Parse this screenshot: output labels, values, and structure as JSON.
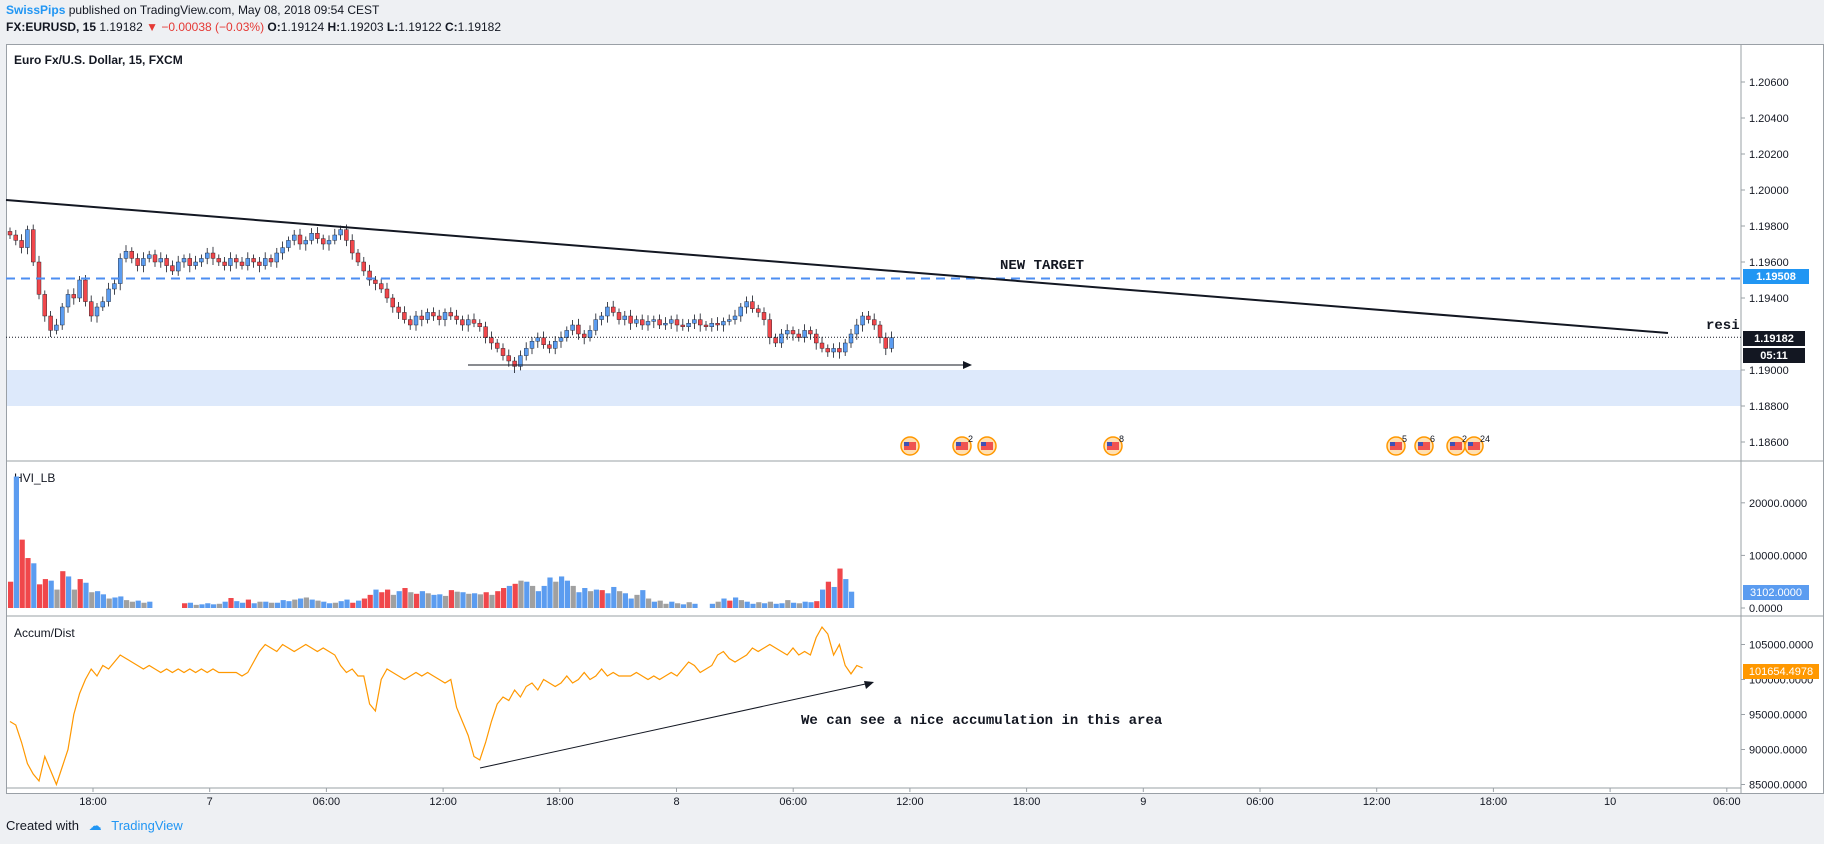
{
  "header": {
    "author": "SwissPips",
    "published": "published on TradingView.com, May 08, 2018 09:54 CEST",
    "symbol": "FX:EURUSD, 15",
    "last": "1.19182",
    "change": "▼ −0.00038 (−0.03%)",
    "o_label": "O:",
    "o": "1.19124",
    "h_label": "H:",
    "h": "1.19203",
    "l_label": "L:",
    "l": "1.19122",
    "c_label": "C:",
    "c": "1.19182"
  },
  "footer": {
    "created": "Created with",
    "brand": "TradingView"
  },
  "colors": {
    "up": "#5b9cf0",
    "down": "#f0474b",
    "neutral": "#a0a0a0",
    "accent": "#2196f3",
    "orange": "#ff9800"
  },
  "chart_data": [
    {
      "type": "candlestick",
      "title": "Euro Fx/U.S. Dollar, 15, FXCM",
      "ylim": [
        1.185,
        1.208
      ],
      "y_ticks": [
        "1.20600",
        "1.20400",
        "1.20200",
        "1.20000",
        "1.19800",
        "1.19600",
        "1.19400",
        "1.19000",
        "1.18800",
        "1.18600"
      ],
      "x_tick_labels": [
        "18:00",
        "7",
        "06:00",
        "12:00",
        "18:00",
        "8",
        "06:00",
        "12:00",
        "18:00",
        "9",
        "06:00",
        "12:00",
        "18:00",
        "10",
        "06:00"
      ],
      "price_line": {
        "value": 1.19182,
        "label": "1.19182",
        "countdown": "05:11"
      },
      "target_line": {
        "value": 1.19508,
        "label": "1.19508",
        "annotation": "NEW TARGET"
      },
      "trendline_label": "resi",
      "support_zone": [
        1.188,
        1.19
      ],
      "event_badges": [
        "",
        "2",
        "",
        "8",
        "5",
        "6",
        "2",
        "24"
      ],
      "closes": [
        1.1975,
        1.1972,
        1.1968,
        1.1978,
        1.196,
        1.1942,
        1.193,
        1.1922,
        1.1925,
        1.1935,
        1.1942,
        1.194,
        1.195,
        1.1938,
        1.193,
        1.1935,
        1.1938,
        1.1945,
        1.1948,
        1.1962,
        1.1966,
        1.1962,
        1.1958,
        1.1962,
        1.1964,
        1.196,
        1.1962,
        1.1958,
        1.1955,
        1.196,
        1.1962,
        1.1958,
        1.196,
        1.1962,
        1.1965,
        1.1962,
        1.196,
        1.1958,
        1.1962,
        1.196,
        1.1958,
        1.1962,
        1.196,
        1.1958,
        1.1962,
        1.196,
        1.1965,
        1.1968,
        1.1972,
        1.1975,
        1.197,
        1.1972,
        1.1976,
        1.1973,
        1.197,
        1.1972,
        1.1975,
        1.1978,
        1.1972,
        1.1965,
        1.196,
        1.1955,
        1.195,
        1.1948,
        1.1945,
        1.194,
        1.1935,
        1.1932,
        1.1928,
        1.1925,
        1.193,
        1.1928,
        1.1932,
        1.193,
        1.1928,
        1.1932,
        1.193,
        1.1928,
        1.1925,
        1.1928,
        1.1926,
        1.1924,
        1.1918,
        1.1915,
        1.1912,
        1.1908,
        1.1905,
        1.1902,
        1.1908,
        1.1912,
        1.1916,
        1.1918,
        1.1914,
        1.1912,
        1.1916,
        1.1918,
        1.1922,
        1.1925,
        1.192,
        1.1918,
        1.1922,
        1.1928,
        1.193,
        1.1935,
        1.1932,
        1.1928,
        1.193,
        1.1926,
        1.1928,
        1.1925,
        1.1927,
        1.1928,
        1.1925,
        1.1926,
        1.1928,
        1.1925,
        1.1924,
        1.1926,
        1.1928,
        1.1925,
        1.1924,
        1.1926,
        1.1925,
        1.1927,
        1.1928,
        1.193,
        1.1935,
        1.1938,
        1.1934,
        1.1932,
        1.1928,
        1.1918,
        1.1915,
        1.192,
        1.1922,
        1.192,
        1.1918,
        1.1922,
        1.192,
        1.1915,
        1.1912,
        1.191,
        1.1912,
        1.191,
        1.1915,
        1.192,
        1.1925,
        1.193,
        1.1928,
        1.1925,
        1.1918,
        1.1912,
        1.1918
      ]
    },
    {
      "type": "bar",
      "title": "HVI_LB",
      "ylim": [
        0,
        27000
      ],
      "y_ticks": [
        "20000.0000",
        "10000.0000",
        "0.0000"
      ],
      "last_label": "3102.0000",
      "values": [
        5000,
        25000,
        13000,
        9500,
        8500,
        4500,
        5500,
        5200,
        3500,
        7000,
        6000,
        3500,
        5500,
        4800,
        3000,
        3200,
        2600,
        1800,
        2000,
        2200,
        1500,
        1200,
        1400,
        1000,
        1200,
        0,
        0,
        0,
        0,
        0,
        900,
        1000,
        600,
        700,
        900,
        700,
        800,
        1200,
        1900,
        1300,
        1000,
        1600,
        900,
        1200,
        1200,
        1000,
        1000,
        1500,
        1300,
        1600,
        1800,
        2000,
        1600,
        1400,
        1200,
        900,
        1000,
        1300,
        1600,
        1000,
        1400,
        1800,
        2500,
        3500,
        3000,
        3500,
        2500,
        3200,
        3800,
        3000,
        2700,
        3200,
        2800,
        2500,
        2600,
        2300,
        3400,
        3100,
        3000,
        2700,
        2800,
        2600,
        3000,
        2500,
        3200,
        3800,
        4200,
        4600,
        5200,
        5000,
        4200,
        3200,
        4200,
        5800,
        5000,
        6000,
        5200,
        4200,
        3000,
        3800,
        3200,
        3500,
        3400,
        2800,
        4000,
        3200,
        2800,
        1800,
        2500,
        3400,
        1800,
        1200,
        1400,
        800,
        1200,
        900,
        700,
        1100,
        800,
        0,
        0,
        800,
        1200,
        1800,
        1400,
        2000,
        1500,
        1200,
        800,
        1100,
        900,
        1200,
        800,
        900,
        1500,
        1000,
        900,
        1200,
        1100,
        1300,
        3500,
        5000,
        4000,
        7500,
        5500,
        3102
      ],
      "colors": [
        "down",
        "up",
        "down",
        "down",
        "up",
        "down",
        "down",
        "up",
        "neutral",
        "down",
        "up",
        "neutral",
        "down",
        "up",
        "neutral",
        "up",
        "up",
        "neutral",
        "up",
        "up",
        "neutral",
        "neutral",
        "up",
        "neutral",
        "up",
        "up",
        "up",
        "up",
        "up",
        "up",
        "down",
        "up",
        "neutral",
        "up",
        "up",
        "up",
        "neutral",
        "up",
        "down",
        "up",
        "up",
        "down",
        "up",
        "neutral",
        "up",
        "neutral",
        "up",
        "up",
        "up",
        "neutral",
        "up",
        "neutral",
        "up",
        "neutral",
        "up",
        "up",
        "neutral",
        "up",
        "up",
        "down",
        "up",
        "down",
        "down",
        "up",
        "down",
        "down",
        "neutral",
        "up",
        "down",
        "neutral",
        "down",
        "up",
        "neutral",
        "up",
        "up",
        "neutral",
        "down",
        "neutral",
        "up",
        "neutral",
        "up",
        "neutral",
        "down",
        "neutral",
        "down",
        "down",
        "up",
        "down",
        "neutral",
        "up",
        "neutral",
        "up",
        "up",
        "up",
        "neutral",
        "up",
        "up",
        "neutral",
        "up",
        "up",
        "neutral",
        "up",
        "down",
        "up",
        "up",
        "neutral",
        "up",
        "up",
        "neutral",
        "up",
        "neutral",
        "up",
        "neutral",
        "neutral",
        "up",
        "neutral",
        "up",
        "neutral",
        "up",
        "up",
        "up",
        "up",
        "neutral",
        "up",
        "down",
        "up",
        "neutral",
        "up",
        "up",
        "neutral",
        "up",
        "neutral",
        "up",
        "up",
        "neutral",
        "up",
        "neutral",
        "up",
        "up",
        "down",
        "up",
        "down",
        "up",
        "down",
        "up",
        "up",
        "down",
        "up"
      ]
    },
    {
      "type": "line",
      "title": "Accum/Dist",
      "ylim": [
        84500,
        108500
      ],
      "y_ticks": [
        "105000.0000",
        "100000.0000",
        "95000.0000",
        "90000.0000",
        "85000.0000"
      ],
      "last_label": "101654.4978",
      "annotation": "We can see a nice accumulation in this area",
      "values": [
        94000,
        93500,
        91000,
        88000,
        86500,
        85500,
        89000,
        87000,
        85000,
        87500,
        90000,
        95000,
        98000,
        100000,
        101500,
        100500,
        102000,
        101500,
        102500,
        103500,
        103000,
        102500,
        102000,
        101500,
        102000,
        101500,
        101000,
        101500,
        101000,
        101500,
        101000,
        101500,
        101000,
        101500,
        101000,
        101500,
        101000,
        101000,
        101000,
        101000,
        100500,
        101000,
        102500,
        104000,
        105000,
        104500,
        104000,
        105000,
        104500,
        104000,
        104500,
        105000,
        104500,
        104000,
        104500,
        104000,
        103500,
        102000,
        101000,
        101500,
        100500,
        100500,
        96500,
        95500,
        100000,
        101500,
        101000,
        100500,
        100000,
        100500,
        101000,
        100500,
        101000,
        100500,
        100000,
        99500,
        100000,
        96000,
        94000,
        92000,
        89000,
        88500,
        91000,
        94000,
        96500,
        97500,
        97000,
        98500,
        97500,
        99000,
        99500,
        98500,
        100000,
        99500,
        99000,
        99500,
        100500,
        99500,
        100000,
        101000,
        100000,
        100500,
        101500,
        100500,
        101000,
        100500,
        100500,
        100500,
        101000,
        100500,
        100000,
        100500,
        100000,
        100500,
        101000,
        100500,
        101500,
        102500,
        102000,
        101000,
        101500,
        102000,
        103500,
        104000,
        103000,
        102500,
        103000,
        103500,
        104500,
        104000,
        104500,
        105000,
        104500,
        104000,
        103500,
        104500,
        103500,
        104000,
        103500,
        106000,
        107500,
        106500,
        103500,
        105000,
        102000,
        100800,
        102000,
        101654
      ]
    }
  ]
}
